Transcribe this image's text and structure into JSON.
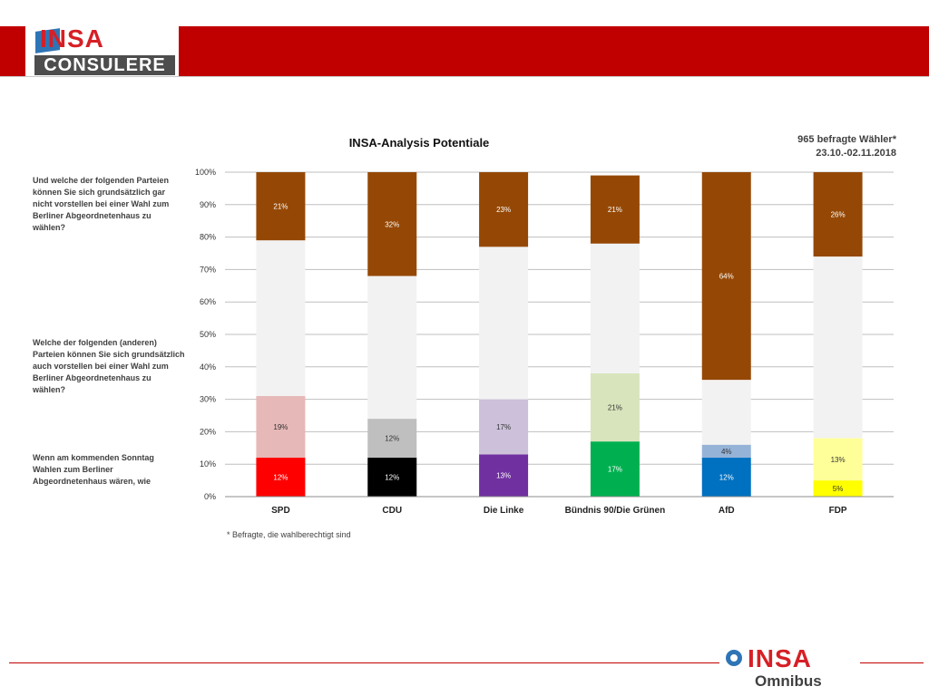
{
  "header": {
    "logo_word": "INSA",
    "logo_sub": "CONSULERE"
  },
  "sample_info": {
    "line1": "965 befragte Wähler*",
    "line2": "23.10.-02.11.2018"
  },
  "questions": {
    "q1": "Und welche der folgenden Parteien können Sie sich grundsätzlich gar nicht vorstellen bei einer Wahl zum Berliner Abgeordnetenhaus zu wählen?",
    "q2": "Welche der folgenden (anderen) Parteien können Sie sich grundsätzlich auch vorstellen bei einer Wahl zum Berliner Abgeordnetenhaus zu wählen?",
    "q3": "Wenn am kommenden Sonntag Wahlen zum Berliner Abgeordnetenhaus wären, wie"
  },
  "footnote": "* Befragte, die wahlberechtigt sind",
  "footer": {
    "logo_word": "INSA",
    "logo_sub": "Omnibus"
  },
  "colors": {
    "ausgeschlossen": "#954805",
    "mitte": "#f2f2f2",
    "grid": "#bfbfbf",
    "brand_red": "#c00000"
  },
  "chart_data": {
    "type": "bar",
    "stacked": true,
    "title": "INSA-Analysis Potentiale",
    "ylim": [
      0,
      100
    ],
    "y_ticks": [
      "0%",
      "10%",
      "20%",
      "30%",
      "40%",
      "50%",
      "60%",
      "70%",
      "80%",
      "90%",
      "100%"
    ],
    "grid": true,
    "categories": [
      "SPD",
      "CDU",
      "Die Linke",
      "Bündnis 90/Die Grünen",
      "AfD",
      "FDP"
    ],
    "series": [
      {
        "values": [
          12,
          12,
          13,
          17,
          12,
          5
        ],
        "labels": [
          "12%",
          "12%",
          "13%",
          "17%",
          "12%",
          "5%"
        ],
        "colors": [
          "#ff0000",
          "#000000",
          "#7030a0",
          "#00b050",
          "#0070c0",
          "#ffff00"
        ],
        "text_colors": [
          "#ffffff",
          "#ffffff",
          "#ffffff",
          "#ffffff",
          "#ffffff",
          "#333333"
        ]
      },
      {
        "values": [
          19,
          12,
          17,
          21,
          4,
          13
        ],
        "labels": [
          "19%",
          "12%",
          "17%",
          "21%",
          "4%",
          "13%"
        ],
        "colors": [
          "#e6b8b7",
          "#bfbfbf",
          "#ccc0da",
          "#d8e4bc",
          "#95b3d7",
          "#ffff99"
        ],
        "text_colors": [
          "#333333",
          "#333333",
          "#333333",
          "#333333",
          "#333333",
          "#333333"
        ]
      },
      {
        "values": [
          48,
          44,
          47,
          40,
          20,
          56
        ],
        "labels": [
          "",
          "",
          "",
          "",
          "",
          ""
        ],
        "colors": [
          "#f2f2f2",
          "#f2f2f2",
          "#f2f2f2",
          "#f2f2f2",
          "#f2f2f2",
          "#f2f2f2"
        ],
        "text_colors": [
          "#333333",
          "#333333",
          "#333333",
          "#333333",
          "#333333",
          "#333333"
        ]
      },
      {
        "values": [
          21,
          32,
          23,
          21,
          64,
          26
        ],
        "labels": [
          "21%",
          "32%",
          "23%",
          "21%",
          "64%",
          "26%"
        ],
        "colors": [
          "#954805",
          "#954805",
          "#954805",
          "#954805",
          "#954805",
          "#954805"
        ],
        "text_colors": [
          "#ffffff",
          "#ffffff",
          "#ffffff",
          "#ffffff",
          "#ffffff",
          "#ffffff"
        ]
      }
    ]
  }
}
